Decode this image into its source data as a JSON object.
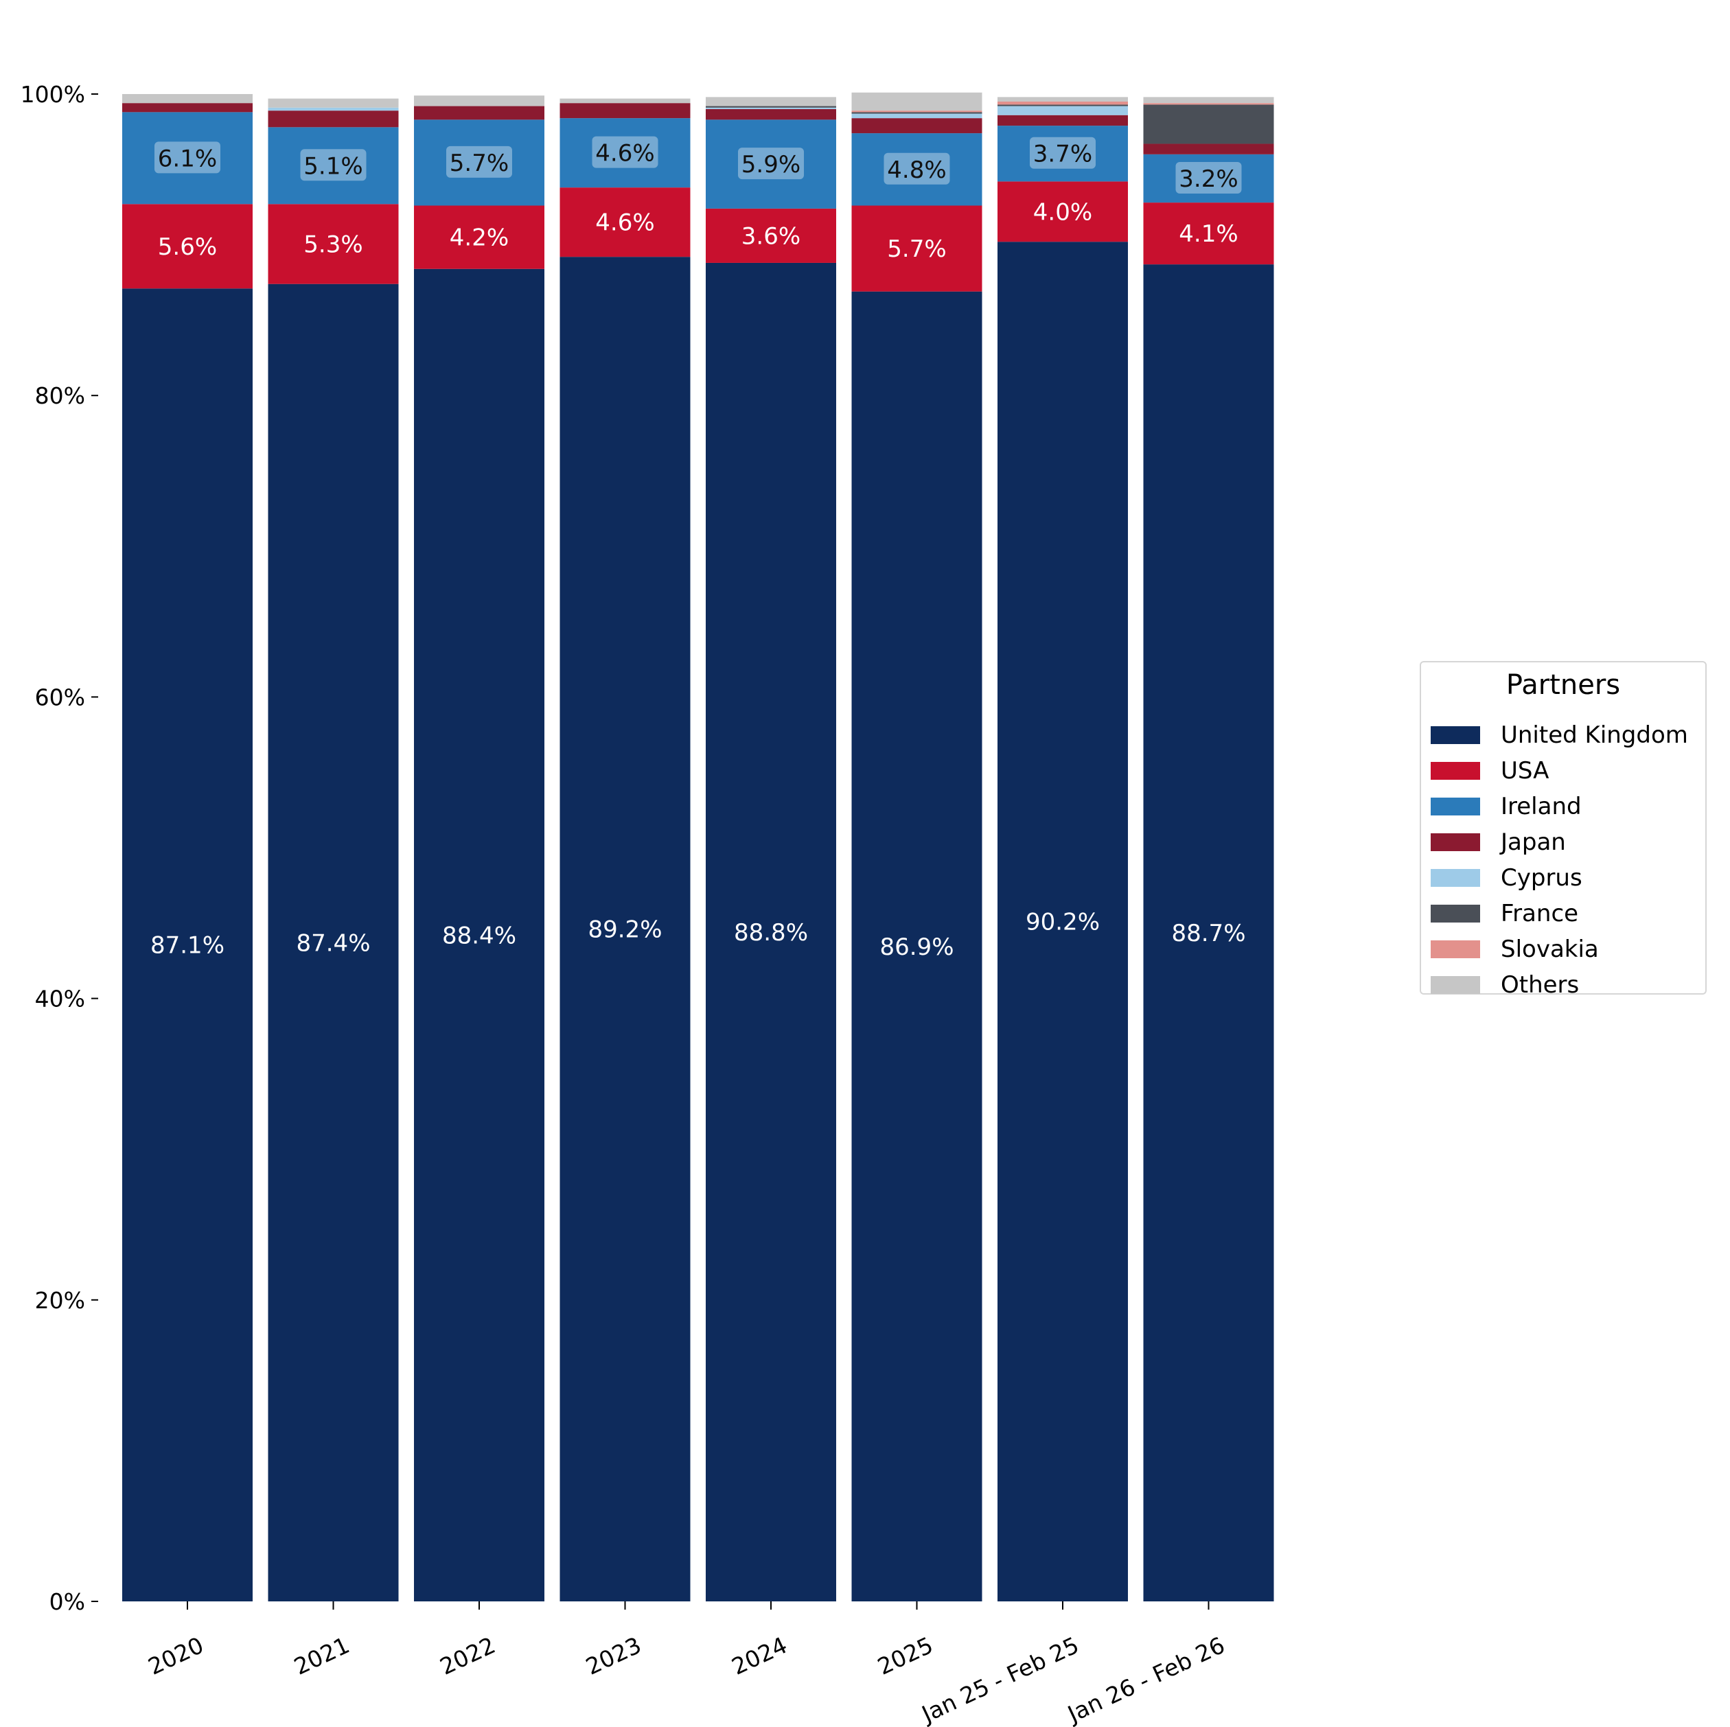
{
  "chart_data": {
    "type": "bar",
    "stacked": true,
    "categories": [
      "2020",
      "2021",
      "2022",
      "2023",
      "2024",
      "2025",
      "Jan 25 - Feb 25",
      "Jan 26 - Feb 26"
    ],
    "ylim": [
      0,
      100
    ],
    "y_ticks": [
      "0%",
      "20%",
      "40%",
      "60%",
      "80%",
      "100%"
    ],
    "y_tick_values": [
      0,
      20,
      40,
      60,
      80,
      100
    ],
    "grid": false,
    "legend": {
      "title": "Partners",
      "placement": "right"
    },
    "series": [
      {
        "name": "United Kingdom",
        "color": "#0e2b5c",
        "label_color": "#ffffff",
        "label_box": false,
        "values": [
          87.1,
          87.4,
          88.4,
          89.2,
          88.8,
          86.9,
          90.2,
          88.7
        ],
        "labels": [
          "87.1%",
          "87.4%",
          "88.4%",
          "89.2%",
          "88.8%",
          "86.9%",
          "90.2%",
          "88.7%"
        ]
      },
      {
        "name": "USA",
        "color": "#c8102e",
        "label_color": "#ffffff",
        "label_box": false,
        "values": [
          5.6,
          5.3,
          4.2,
          4.6,
          3.6,
          5.7,
          4.0,
          4.1
        ],
        "labels": [
          "5.6%",
          "5.3%",
          "4.2%",
          "4.6%",
          "3.6%",
          "5.7%",
          "4.0%",
          "4.1%"
        ]
      },
      {
        "name": "Ireland",
        "color": "#2b7bba",
        "label_color": "#111111",
        "label_box": true,
        "values": [
          6.1,
          5.1,
          5.7,
          4.6,
          5.9,
          4.8,
          3.7,
          3.2
        ],
        "labels": [
          "6.1%",
          "5.1%",
          "5.7%",
          "4.6%",
          "5.9%",
          "4.8%",
          "3.7%",
          "3.2%"
        ]
      },
      {
        "name": "Japan",
        "color": "#8b1a30",
        "values": [
          0.6,
          1.1,
          0.9,
          1.0,
          0.7,
          1.0,
          0.7,
          0.7
        ]
      },
      {
        "name": "Cyprus",
        "color": "#9ecbe8",
        "values": [
          0.0,
          0.2,
          0.0,
          0.0,
          0.1,
          0.3,
          0.6,
          0.0
        ]
      },
      {
        "name": "France",
        "color": "#4a4f57",
        "values": [
          0.0,
          0.0,
          0.0,
          0.0,
          0.1,
          0.1,
          0.1,
          2.6
        ]
      },
      {
        "name": "Slovakia",
        "color": "#e3918c",
        "values": [
          0.0,
          0.0,
          0.0,
          0.0,
          0.0,
          0.1,
          0.2,
          0.1
        ]
      },
      {
        "name": "Others",
        "color": "#c6c6c6",
        "values": [
          0.6,
          0.6,
          0.7,
          0.3,
          0.6,
          1.2,
          0.3,
          0.4
        ]
      }
    ]
  }
}
